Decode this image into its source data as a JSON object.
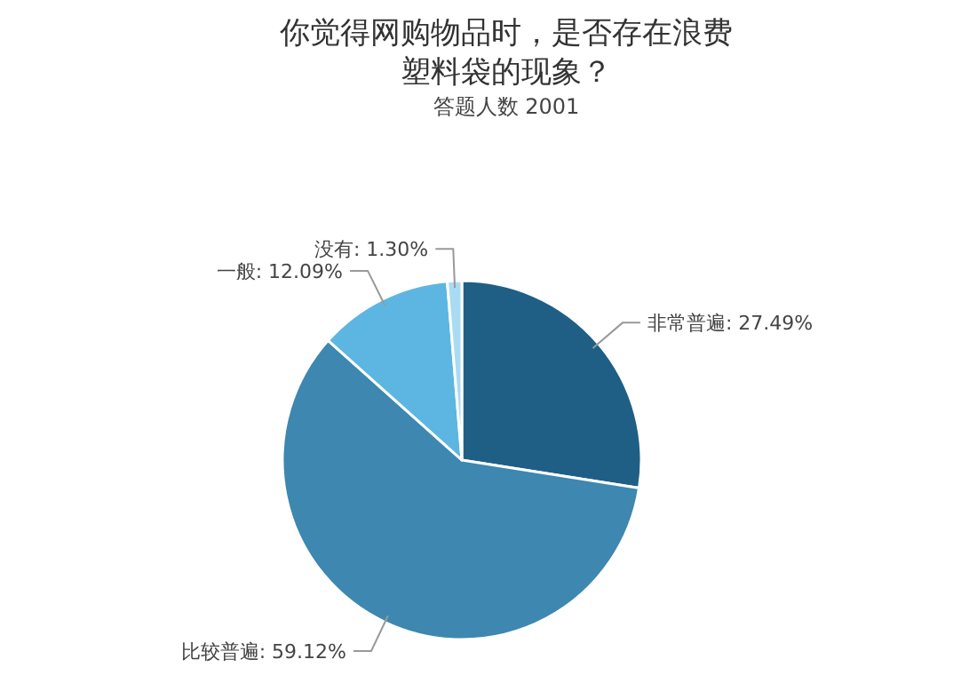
{
  "chart_data": {
    "type": "pie",
    "title": "你觉得网购物品时，是否存在浪费塑料袋的现象？",
    "subtitle": "答题人数 2001",
    "categories": [
      "非常普遍",
      "比较普遍",
      "一般",
      "没有"
    ],
    "values": [
      27.49,
      59.12,
      12.09,
      1.3
    ],
    "value_labels": [
      "27.49%",
      "59.12%",
      "12.09%",
      "1.30%"
    ],
    "colors": [
      "#1f5f86",
      "#3d87b0",
      "#5cb6e1",
      "#a9dbf3"
    ]
  }
}
